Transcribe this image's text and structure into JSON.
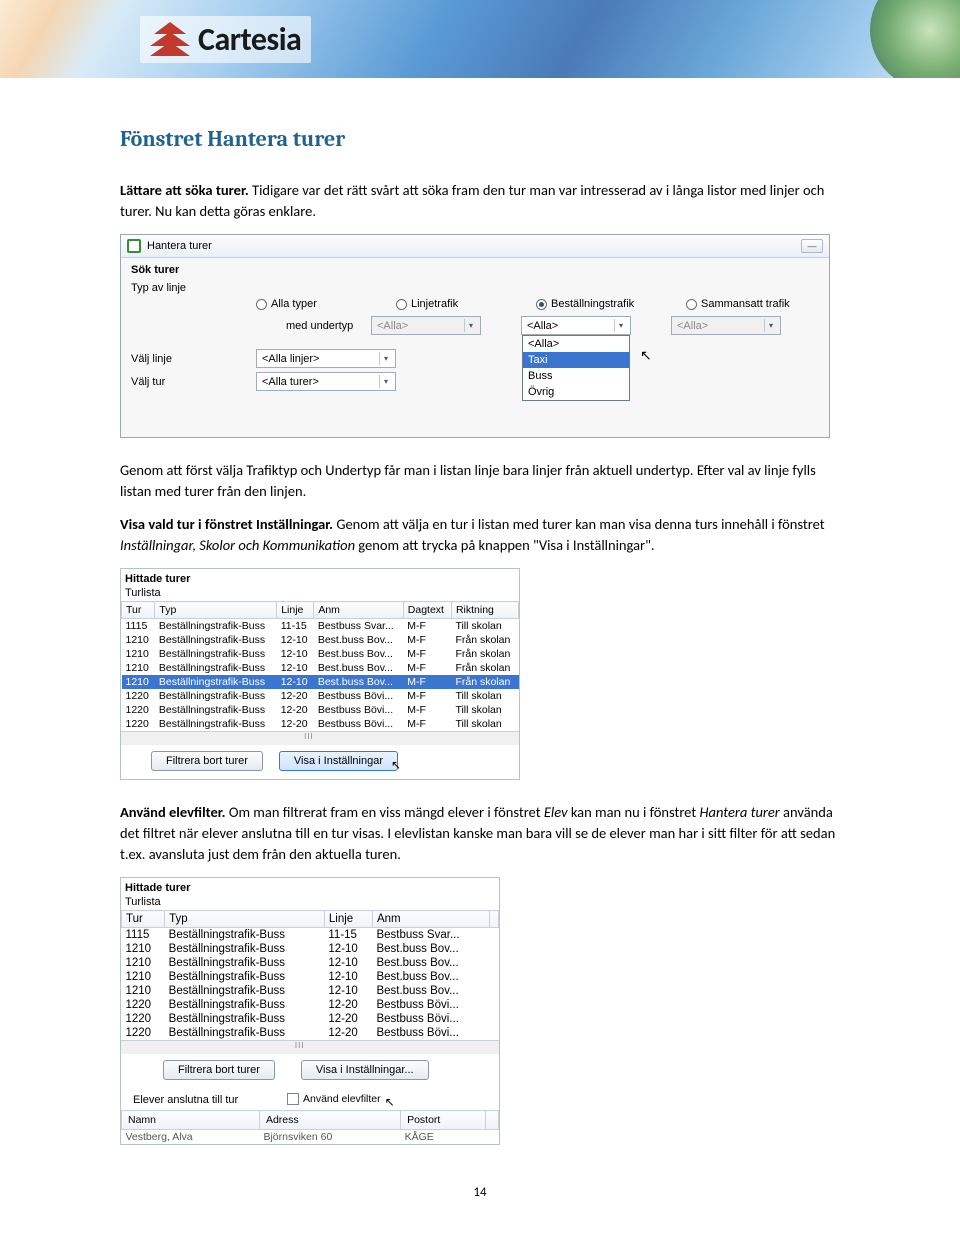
{
  "brand": {
    "name": "Cartesia"
  },
  "headings": {
    "section": "Fönstret Hantera turer"
  },
  "para1": {
    "lead": "Lättare att söka turer.",
    "rest": " Tidigare var det rätt svårt att söka fram den tur man var intresserad av i långa listor med linjer och turer. Nu kan detta göras enklare."
  },
  "scr1": {
    "title": "Hantera turer",
    "group": "Sök turer",
    "labels": {
      "typ": "Typ av linje",
      "undertyp": "med undertyp",
      "linje": "Välj linje",
      "tur": "Välj tur"
    },
    "radios": {
      "alla": "Alla typer",
      "linje": "Linjetrafik",
      "best": "Beställningstrafik",
      "samman": "Sammansatt trafik"
    },
    "combos": {
      "alla": "<Alla>",
      "alla_linjer": "<Alla linjer>",
      "alla_turer": "<Alla turer>"
    },
    "dropdown": [
      "<Alla>",
      "Taxi",
      "Buss",
      "Övrig"
    ]
  },
  "para2": "Genom att först välja Trafiktyp och Undertyp får man i listan linje bara linjer från aktuell undertyp. Efter val av linje fylls listan med turer från den linjen.",
  "para3": {
    "lead": "Visa vald tur i fönstret Inställningar.",
    "rest1": " Genom att välja en tur i listan med turer kan man visa denna turs innehåll i fönstret ",
    "it": "Inställningar, Skolor och Kommunikation",
    "rest2": " genom att trycka på knappen \"Visa i Inställningar\"."
  },
  "scr2": {
    "head": "Hittade turer",
    "sub": "Turlista",
    "cols": [
      "Tur",
      "Typ",
      "Linje",
      "Anm",
      "Dagtext",
      "Riktning"
    ],
    "rows": [
      [
        "1115",
        "Beställningstrafik-Buss",
        "11-15",
        "Bestbuss Svar...",
        "M-F",
        "Till skolan"
      ],
      [
        "1210",
        "Beställningstrafik-Buss",
        "12-10",
        "Best.buss Bov...",
        "M-F",
        "Från skolan"
      ],
      [
        "1210",
        "Beställningstrafik-Buss",
        "12-10",
        "Best.buss Bov...",
        "M-F",
        "Från skolan"
      ],
      [
        "1210",
        "Beställningstrafik-Buss",
        "12-10",
        "Best.buss Bov...",
        "M-F",
        "Från skolan"
      ],
      [
        "1210",
        "Beställningstrafik-Buss",
        "12-10",
        "Best.buss Bov...",
        "M-F",
        "Från skolan"
      ],
      [
        "1220",
        "Beställningstrafik-Buss",
        "12-20",
        "Bestbuss Bövi...",
        "M-F",
        "Till skolan"
      ],
      [
        "1220",
        "Beställningstrafik-Buss",
        "12-20",
        "Bestbuss Bövi...",
        "M-F",
        "Till skolan"
      ],
      [
        "1220",
        "Beställningstrafik-Buss",
        "12-20",
        "Bestbuss Bövi...",
        "M-F",
        "Till skolan"
      ]
    ],
    "selected_row": 4,
    "btn_filter": "Filtrera bort turer",
    "btn_visa": "Visa i Inställningar"
  },
  "para4": {
    "lead": "Använd elevfilter.",
    "rest1": " Om man filtrerat fram en viss mängd elever i fönstret ",
    "it1": "Elev",
    "rest2": " kan man nu i fönstret ",
    "it2": "Hantera turer",
    "rest3": " använda det filtret när elever anslutna till en tur visas. I elevlistan kanske man bara vill se de elever man har i sitt filter för att sedan t.ex. avansluta just dem från den aktuella turen."
  },
  "scr3": {
    "head": "Hittade turer",
    "sub": "Turlista",
    "cols": [
      "Tur",
      "Typ",
      "Linje",
      "Anm"
    ],
    "rows": [
      [
        "1115",
        "Beställningstrafik-Buss",
        "11-15",
        "Bestbuss Svar..."
      ],
      [
        "1210",
        "Beställningstrafik-Buss",
        "12-10",
        "Best.buss Bov..."
      ],
      [
        "1210",
        "Beställningstrafik-Buss",
        "12-10",
        "Best.buss Bov..."
      ],
      [
        "1210",
        "Beställningstrafik-Buss",
        "12-10",
        "Best.buss Bov..."
      ],
      [
        "1210",
        "Beställningstrafik-Buss",
        "12-10",
        "Best.buss Bov..."
      ],
      [
        "1220",
        "Beställningstrafik-Buss",
        "12-20",
        "Bestbuss Bövi..."
      ],
      [
        "1220",
        "Beställningstrafik-Buss",
        "12-20",
        "Bestbuss Bövi..."
      ],
      [
        "1220",
        "Beställningstrafik-Buss",
        "12-20",
        "Bestbuss Bövi..."
      ]
    ],
    "btn_filter": "Filtrera bort turer",
    "btn_visa": "Visa i Inställningar...",
    "elev_label": "Elever anslutna till tur",
    "chk_label": "Använd elevfilter",
    "cols2": [
      "Namn",
      "Adress",
      "Postort"
    ],
    "row2": [
      "Vestberg, Alva",
      "Björnsviken 60",
      "KÅGE"
    ]
  },
  "page_num": "14"
}
